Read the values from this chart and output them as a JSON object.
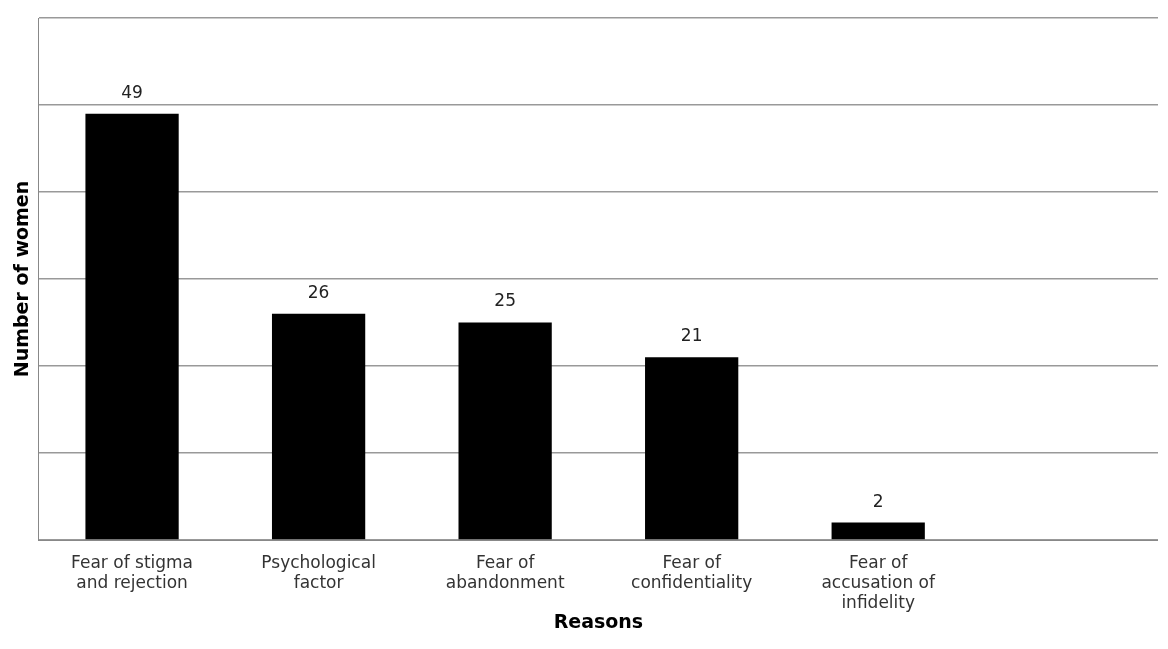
{
  "chart_data": {
    "type": "bar",
    "xlabel": "Reasons",
    "ylabel": "Number of women",
    "categories": [
      "Fear of stigma and rejection",
      "Psychological factor",
      "Fear of abandonment",
      "Fear of confidentiality",
      "Fear of accusation of infidelity",
      null
    ],
    "values": [
      49,
      26,
      25,
      21,
      2,
      null
    ],
    "color": "#000000",
    "ylim": [
      0,
      60
    ],
    "yticks": [
      {
        "value": 0,
        "label": null
      },
      {
        "value": 10,
        "label": null
      },
      {
        "value": 20,
        "label": null
      },
      {
        "value": 30,
        "label": null
      },
      {
        "value": 40,
        "label": null
      },
      {
        "value": 50,
        "label": null
      },
      {
        "value": 60,
        "label": null
      }
    ],
    "grid": "y",
    "tick_labels": "x",
    "data_labels": true
  }
}
